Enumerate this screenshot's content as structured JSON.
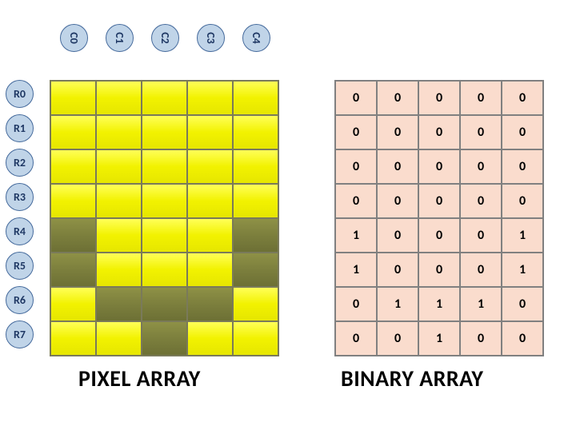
{
  "rows": [
    "R0",
    "R1",
    "R2",
    "R3",
    "R4",
    "R5",
    "R6",
    "R7"
  ],
  "cols": [
    "C0",
    "C1",
    "C2",
    "C3",
    "C4"
  ],
  "pixel_caption": "PIXEL ARRAY",
  "binary_caption": "BINARY ARRAY",
  "badge_fill": "#c0d4e8",
  "badge_stroke": "#456a9c",
  "badge_text_color": "#1f3864",
  "pixel_bright_color": "#ffff00",
  "pixel_dark_color": "#808040",
  "binary_cell_color": "#fadccd",
  "binary_border_color": "#808080",
  "binary_text_color": "#000000",
  "caption_fontsize": 28,
  "cell_fontsize": 16,
  "binary": [
    [
      0,
      0,
      0,
      0,
      0
    ],
    [
      0,
      0,
      0,
      0,
      0
    ],
    [
      0,
      0,
      0,
      0,
      0
    ],
    [
      0,
      0,
      0,
      0,
      0
    ],
    [
      1,
      0,
      0,
      0,
      1
    ],
    [
      1,
      0,
      0,
      0,
      1
    ],
    [
      0,
      1,
      1,
      1,
      0
    ],
    [
      0,
      0,
      1,
      0,
      0
    ]
  ]
}
